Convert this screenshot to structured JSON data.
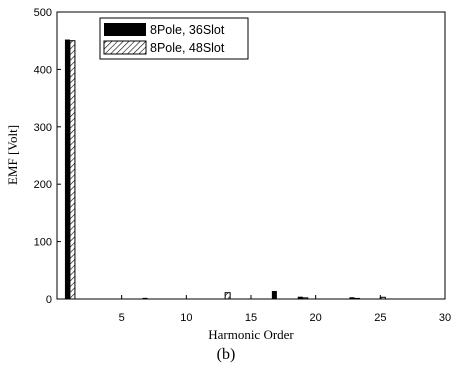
{
  "chart_data": {
    "type": "bar",
    "xlabel": "Harmonic Order",
    "ylabel": "EMF [Volt]",
    "caption": "(b)",
    "xlim": [
      0,
      30
    ],
    "ylim": [
      0,
      500
    ],
    "xticks": [
      5,
      10,
      15,
      20,
      25,
      30
    ],
    "yticks": [
      0,
      100,
      200,
      300,
      400,
      500
    ],
    "legend_position": "top-left",
    "categories": [
      1,
      7,
      13,
      17,
      19,
      23,
      25
    ],
    "series": [
      {
        "name": "8Pole, 36Slot",
        "style": "solid",
        "color": "#000000",
        "values": [
          452,
          2,
          0,
          14,
          4,
          3,
          0
        ]
      },
      {
        "name": "8Pole, 48Slot",
        "style": "hatched",
        "color": "#000000",
        "values": [
          450,
          0,
          11,
          0,
          2,
          1,
          3
        ]
      }
    ]
  }
}
